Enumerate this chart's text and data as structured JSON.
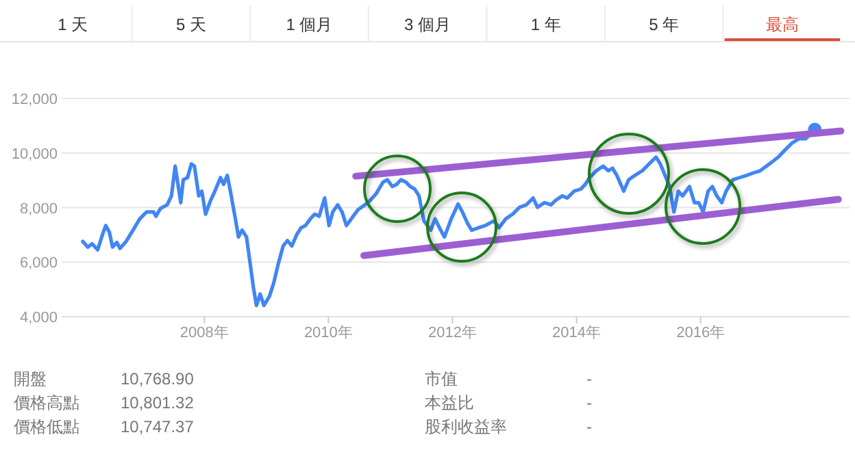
{
  "chart_data": [
    {
      "type": "other",
      "annotations": [
        "1 天",
        "5 天",
        "1 個月",
        "3 個月",
        "1 年",
        "5 年",
        "最高"
      ],
      "colors": [
        "#333333",
        "#333333",
        "#333333",
        "#333333",
        "#333333",
        "#333333",
        "#dd4b39"
      ]
    },
    {
      "type": "line",
      "xlim": [
        2005.7,
        2018.4
      ],
      "ylim": [
        4000,
        12000
      ],
      "xticks": [
        {
          "value": 2008,
          "label": "2008年"
        },
        {
          "value": 2010,
          "label": "2010年"
        },
        {
          "value": 2012,
          "label": "2012年"
        },
        {
          "value": 2014,
          "label": "2014年"
        },
        {
          "value": 2016,
          "label": "2016年"
        }
      ],
      "yticks": [
        {
          "value": 4000,
          "label": "4,000"
        },
        {
          "value": 6000,
          "label": "6,000"
        },
        {
          "value": 8000,
          "label": "8,000"
        },
        {
          "value": 10000,
          "label": "10,000"
        },
        {
          "value": 12000,
          "label": "12,000"
        }
      ],
      "grid": "y",
      "line_style": "solid",
      "series": [
        {
          "color": "#4285f4",
          "x": [
            2006.04,
            2006.12,
            2006.19,
            2006.28,
            2006.37,
            2006.41,
            2006.47,
            2006.52,
            2006.59,
            2006.64,
            2006.74,
            2006.85,
            2006.96,
            2007.07,
            2007.18,
            2007.22,
            2007.29,
            2007.4,
            2007.47,
            2007.53,
            2007.62,
            2007.66,
            2007.73,
            2007.79,
            2007.84,
            2007.91,
            2007.96,
            2008.02,
            2008.1,
            2008.17,
            2008.26,
            2008.31,
            2008.37,
            2008.42,
            2008.5,
            2008.55,
            2008.61,
            2008.68,
            2008.74,
            2008.79,
            2008.84,
            2008.9,
            2008.96,
            2009.05,
            2009.12,
            2009.19,
            2009.27,
            2009.34,
            2009.41,
            2009.49,
            2009.56,
            2009.63,
            2009.71,
            2009.78,
            2009.85,
            2009.94,
            2010.01,
            2010.07,
            2010.15,
            2010.22,
            2010.29,
            2010.37,
            2010.48,
            2010.59,
            2010.66,
            2010.77,
            2010.88,
            2010.95,
            2011.03,
            2011.1,
            2011.17,
            2011.25,
            2011.32,
            2011.39,
            2011.46,
            2011.54,
            2011.65,
            2011.72,
            2011.79,
            2011.87,
            2011.98,
            2012.09,
            2012.16,
            2012.24,
            2012.31,
            2012.42,
            2012.53,
            2012.6,
            2012.67,
            2012.75,
            2012.86,
            2012.97,
            2013.08,
            2013.19,
            2013.3,
            2013.37,
            2013.48,
            2013.59,
            2013.66,
            2013.77,
            2013.85,
            2013.96,
            2014.07,
            2014.14,
            2014.21,
            2014.32,
            2014.43,
            2014.51,
            2014.58,
            2014.65,
            2014.76,
            2014.84,
            2014.94,
            2015.06,
            2015.17,
            2015.28,
            2015.35,
            2015.41,
            2015.5,
            2015.57,
            2015.64,
            2015.71,
            2015.82,
            2015.9,
            2015.97,
            2016.04,
            2016.12,
            2016.19,
            2016.26,
            2016.34,
            2016.41,
            2016.52,
            2016.63,
            2016.74,
            2016.85,
            2016.96,
            2017.11,
            2017.25,
            2017.36,
            2017.47,
            2017.58,
            2017.69,
            2017.77,
            2017.84
          ],
          "values": [
            6760,
            6550,
            6670,
            6450,
            7090,
            7340,
            7090,
            6550,
            6720,
            6500,
            6760,
            7170,
            7590,
            7840,
            7840,
            7680,
            7960,
            8100,
            8430,
            9520,
            8180,
            9020,
            9100,
            9600,
            9520,
            8430,
            8600,
            7760,
            8260,
            8600,
            9100,
            8850,
            9180,
            8600,
            7590,
            6920,
            7170,
            6920,
            5920,
            5080,
            4410,
            4830,
            4410,
            4750,
            5250,
            5920,
            6590,
            6790,
            6590,
            7010,
            7260,
            7340,
            7590,
            7760,
            7680,
            8350,
            7340,
            7840,
            8100,
            7840,
            7340,
            7590,
            7930,
            8100,
            8230,
            8510,
            8930,
            9020,
            8770,
            8850,
            9020,
            8930,
            8770,
            8680,
            8430,
            7510,
            7170,
            7590,
            7260,
            6920,
            7590,
            8130,
            7840,
            7430,
            7170,
            7260,
            7340,
            7430,
            7510,
            7260,
            7590,
            7760,
            8010,
            8100,
            8350,
            8010,
            8180,
            8100,
            8260,
            8430,
            8350,
            8600,
            8680,
            8850,
            9100,
            9350,
            9520,
            9350,
            9440,
            9180,
            8600,
            9020,
            9180,
            9350,
            9600,
            9850,
            9600,
            9270,
            8770,
            7840,
            8600,
            8430,
            8770,
            8180,
            8180,
            7840,
            8600,
            8770,
            8430,
            8180,
            8600,
            9020,
            9100,
            9180,
            9270,
            9350,
            9600,
            9850,
            10110,
            10360,
            10520,
            10520,
            10690,
            10860
          ]
        },
        {
          "type": "scatter",
          "color": "#4285f4",
          "x": [
            2017.84
          ],
          "values": [
            10860
          ]
        },
        {
          "color": "#9c5fd1",
          "x": [
            2010.44,
            2018.26
          ],
          "values": [
            9150,
            10810
          ]
        },
        {
          "color": "#9c5fd1",
          "x": [
            2010.57,
            2018.22
          ],
          "values": [
            6240,
            8300
          ]
        }
      ]
    },
    {
      "type": "other",
      "annotations": [
        "開盤",
        "10,768.90",
        "價格高點",
        "10,801.32",
        "價格低點",
        "10,747.37",
        "市值",
        "-",
        "本益比",
        "-",
        "股利收益率",
        "-"
      ]
    }
  ]
}
